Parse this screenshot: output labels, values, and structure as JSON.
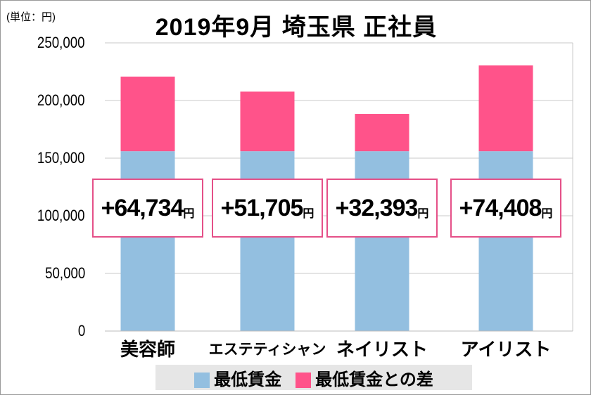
{
  "chart_data": {
    "type": "bar",
    "stacked": true,
    "title": "2019年9月 埼玉県 正社員",
    "unit_label": "(単位：円)",
    "categories": [
      "美容師",
      "エステティシャン",
      "ネイリスト",
      "アイリスト"
    ],
    "series": [
      {
        "name": "最低賃金",
        "color": "#93bfe0",
        "values": [
          156000,
          156000,
          156000,
          156000
        ]
      },
      {
        "name": "最低賃金との差",
        "color": "#ff538a",
        "values": [
          64734,
          51705,
          32393,
          74408
        ]
      }
    ],
    "data_labels": [
      "+64,734",
      "+51,705",
      "+32,393",
      "+74,408"
    ],
    "data_label_unit": "円",
    "yticks": [
      "0",
      "50,000",
      "100,000",
      "150,000",
      "200,000",
      "250,000"
    ],
    "ylim": [
      0,
      250000
    ],
    "grid": true,
    "legend": "bottom"
  }
}
